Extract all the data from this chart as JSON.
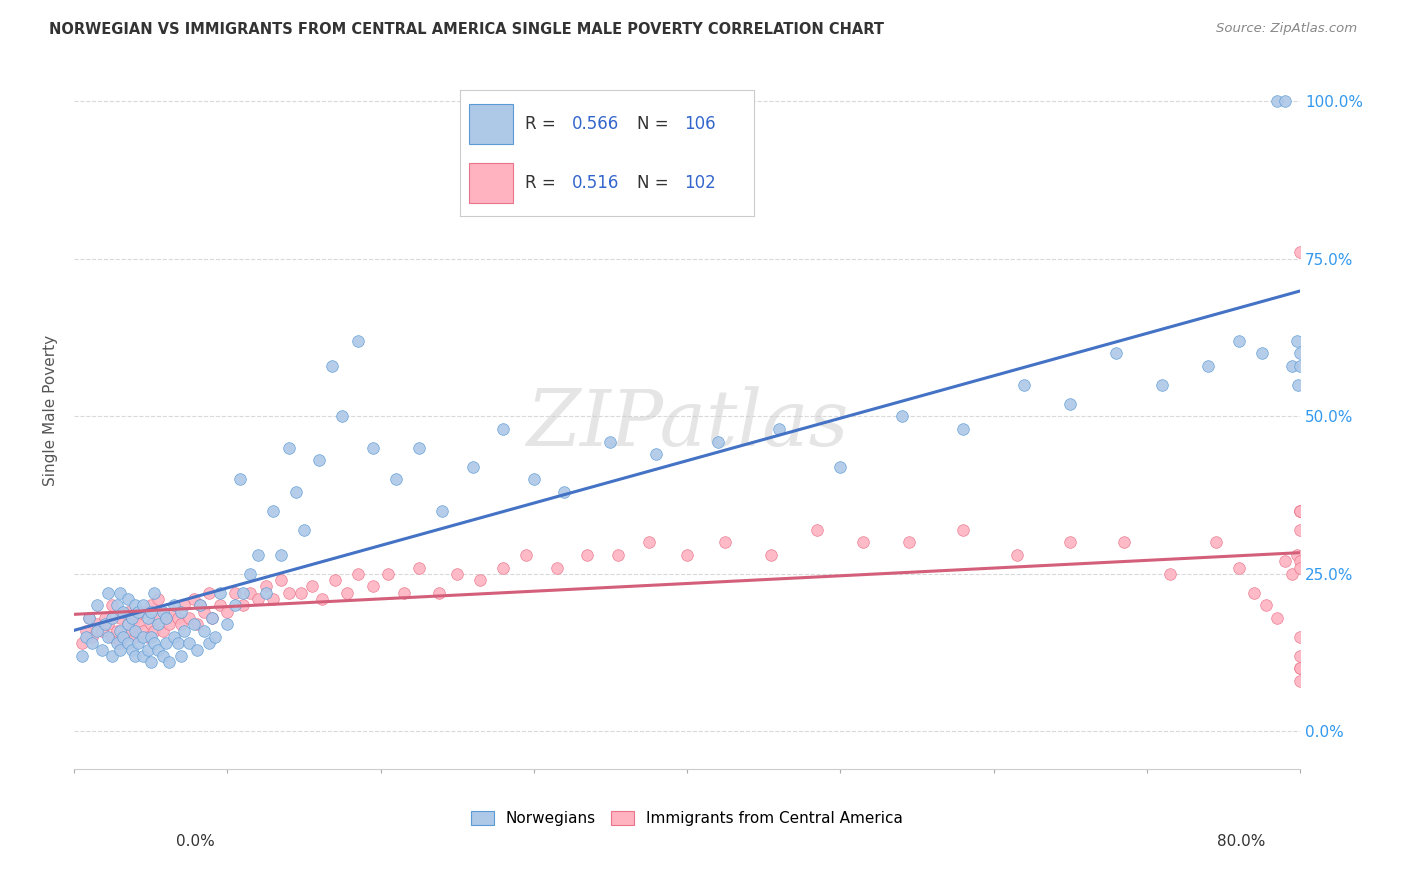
{
  "title": "NORWEGIAN VS IMMIGRANTS FROM CENTRAL AMERICA SINGLE MALE POVERTY CORRELATION CHART",
  "source": "Source: ZipAtlas.com",
  "ylabel": "Single Male Poverty",
  "ytick_labels": [
    "0.0%",
    "25.0%",
    "50.0%",
    "75.0%",
    "100.0%"
  ],
  "ytick_values": [
    0.0,
    0.25,
    0.5,
    0.75,
    1.0
  ],
  "xlim": [
    0.0,
    0.8
  ],
  "ylim": [
    -0.06,
    1.08
  ],
  "norwegian_R": "0.566",
  "norwegian_N": "106",
  "immigrant_R": "0.516",
  "immigrant_N": "102",
  "norwegian_color": "#aec8e8",
  "norwegian_edge_color": "#5b9bd5",
  "immigrant_color": "#ffb3c1",
  "immigrant_edge_color": "#e8738a",
  "trendline_norwegian_color": "#4472c4",
  "trendline_immigrant_color": "#d45f7a",
  "legend_text_color": "#333333",
  "legend_value_color": "#3366cc",
  "watermark": "ZIPatlas",
  "background_color": "#ffffff",
  "grid_color": "#d9d9d9",
  "norwegian_x": [
    0.005,
    0.008,
    0.01,
    0.012,
    0.015,
    0.015,
    0.018,
    0.02,
    0.022,
    0.022,
    0.025,
    0.025,
    0.028,
    0.028,
    0.03,
    0.03,
    0.03,
    0.032,
    0.032,
    0.035,
    0.035,
    0.035,
    0.038,
    0.038,
    0.04,
    0.04,
    0.04,
    0.042,
    0.042,
    0.045,
    0.045,
    0.045,
    0.048,
    0.048,
    0.05,
    0.05,
    0.05,
    0.052,
    0.052,
    0.055,
    0.055,
    0.058,
    0.058,
    0.06,
    0.06,
    0.062,
    0.065,
    0.065,
    0.068,
    0.07,
    0.07,
    0.072,
    0.075,
    0.078,
    0.08,
    0.082,
    0.085,
    0.088,
    0.09,
    0.092,
    0.095,
    0.1,
    0.105,
    0.108,
    0.11,
    0.115,
    0.12,
    0.125,
    0.13,
    0.135,
    0.14,
    0.145,
    0.15,
    0.16,
    0.168,
    0.175,
    0.185,
    0.195,
    0.21,
    0.225,
    0.24,
    0.26,
    0.28,
    0.3,
    0.32,
    0.35,
    0.38,
    0.42,
    0.46,
    0.5,
    0.54,
    0.58,
    0.62,
    0.65,
    0.68,
    0.71,
    0.74,
    0.76,
    0.775,
    0.785,
    0.79,
    0.795,
    0.798,
    0.799,
    0.8,
    0.8
  ],
  "norwegian_y": [
    0.12,
    0.15,
    0.18,
    0.14,
    0.16,
    0.2,
    0.13,
    0.17,
    0.15,
    0.22,
    0.12,
    0.18,
    0.14,
    0.2,
    0.13,
    0.16,
    0.22,
    0.15,
    0.19,
    0.14,
    0.17,
    0.21,
    0.13,
    0.18,
    0.12,
    0.16,
    0.2,
    0.14,
    0.19,
    0.12,
    0.15,
    0.2,
    0.13,
    0.18,
    0.11,
    0.15,
    0.19,
    0.14,
    0.22,
    0.13,
    0.17,
    0.12,
    0.19,
    0.14,
    0.18,
    0.11,
    0.15,
    0.2,
    0.14,
    0.12,
    0.19,
    0.16,
    0.14,
    0.17,
    0.13,
    0.2,
    0.16,
    0.14,
    0.18,
    0.15,
    0.22,
    0.17,
    0.2,
    0.4,
    0.22,
    0.25,
    0.28,
    0.22,
    0.35,
    0.28,
    0.45,
    0.38,
    0.32,
    0.43,
    0.58,
    0.5,
    0.62,
    0.45,
    0.4,
    0.45,
    0.35,
    0.42,
    0.48,
    0.4,
    0.38,
    0.46,
    0.44,
    0.46,
    0.48,
    0.42,
    0.5,
    0.48,
    0.55,
    0.52,
    0.6,
    0.55,
    0.58,
    0.62,
    0.6,
    1.0,
    1.0,
    0.58,
    0.62,
    0.55,
    0.58,
    0.6
  ],
  "immigrant_x": [
    0.005,
    0.008,
    0.01,
    0.012,
    0.015,
    0.018,
    0.02,
    0.022,
    0.025,
    0.025,
    0.028,
    0.03,
    0.03,
    0.032,
    0.035,
    0.035,
    0.038,
    0.04,
    0.04,
    0.042,
    0.045,
    0.045,
    0.048,
    0.05,
    0.05,
    0.052,
    0.055,
    0.055,
    0.058,
    0.06,
    0.062,
    0.065,
    0.068,
    0.07,
    0.072,
    0.075,
    0.078,
    0.08,
    0.082,
    0.085,
    0.088,
    0.09,
    0.095,
    0.1,
    0.105,
    0.11,
    0.115,
    0.12,
    0.125,
    0.13,
    0.135,
    0.14,
    0.148,
    0.155,
    0.162,
    0.17,
    0.178,
    0.185,
    0.195,
    0.205,
    0.215,
    0.225,
    0.238,
    0.25,
    0.265,
    0.28,
    0.295,
    0.315,
    0.335,
    0.355,
    0.375,
    0.4,
    0.425,
    0.455,
    0.485,
    0.515,
    0.545,
    0.58,
    0.615,
    0.65,
    0.685,
    0.715,
    0.745,
    0.76,
    0.77,
    0.778,
    0.785,
    0.79,
    0.795,
    0.798,
    0.8,
    0.8,
    0.8,
    0.8,
    0.8,
    0.8,
    0.8,
    0.8,
    0.8,
    0.8,
    0.8,
    0.8
  ],
  "immigrant_y": [
    0.14,
    0.16,
    0.18,
    0.15,
    0.17,
    0.16,
    0.18,
    0.17,
    0.15,
    0.2,
    0.16,
    0.14,
    0.18,
    0.15,
    0.17,
    0.19,
    0.16,
    0.15,
    0.18,
    0.17,
    0.16,
    0.19,
    0.15,
    0.17,
    0.2,
    0.16,
    0.18,
    0.21,
    0.16,
    0.18,
    0.17,
    0.19,
    0.18,
    0.17,
    0.2,
    0.18,
    0.21,
    0.17,
    0.2,
    0.19,
    0.22,
    0.18,
    0.2,
    0.19,
    0.22,
    0.2,
    0.22,
    0.21,
    0.23,
    0.21,
    0.24,
    0.22,
    0.22,
    0.23,
    0.21,
    0.24,
    0.22,
    0.25,
    0.23,
    0.25,
    0.22,
    0.26,
    0.22,
    0.25,
    0.24,
    0.26,
    0.28,
    0.26,
    0.28,
    0.28,
    0.3,
    0.28,
    0.3,
    0.28,
    0.32,
    0.3,
    0.3,
    0.32,
    0.28,
    0.3,
    0.3,
    0.25,
    0.3,
    0.26,
    0.22,
    0.2,
    0.18,
    0.27,
    0.25,
    0.28,
    0.35,
    0.1,
    0.27,
    0.12,
    0.32,
    0.15,
    0.1,
    0.08,
    0.26,
    0.35,
    0.76,
    0.35
  ]
}
